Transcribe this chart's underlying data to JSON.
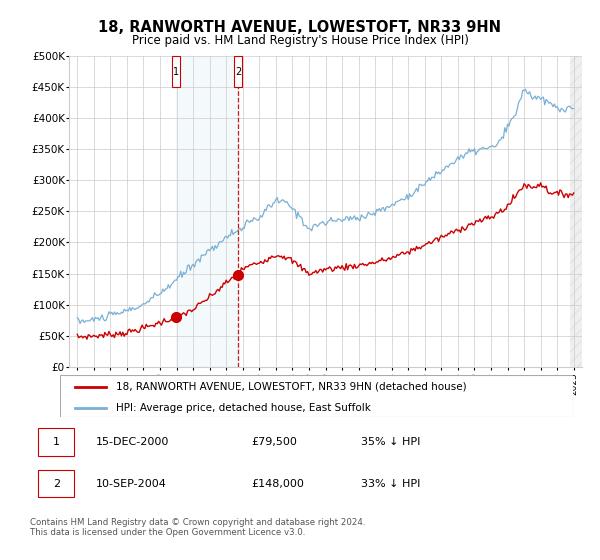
{
  "title": "18, RANWORTH AVENUE, LOWESTOFT, NR33 9HN",
  "subtitle": "Price paid vs. HM Land Registry's House Price Index (HPI)",
  "legend_line1": "18, RANWORTH AVENUE, LOWESTOFT, NR33 9HN (detached house)",
  "legend_line2": "HPI: Average price, detached house, East Suffolk",
  "footer": "Contains HM Land Registry data © Crown copyright and database right 2024.\nThis data is licensed under the Open Government Licence v3.0.",
  "table": [
    {
      "num": "1",
      "date": "15-DEC-2000",
      "price": "£79,500",
      "hpi": "35% ↓ HPI"
    },
    {
      "num": "2",
      "date": "10-SEP-2004",
      "price": "£148,000",
      "hpi": "33% ↓ HPI"
    }
  ],
  "xlim": [
    1994.5,
    2025.5
  ],
  "ylim": [
    0,
    500000
  ],
  "yticks": [
    0,
    50000,
    100000,
    150000,
    200000,
    250000,
    300000,
    350000,
    400000,
    450000,
    500000
  ],
  "ytick_labels": [
    "£0",
    "£50K",
    "£100K",
    "£150K",
    "£200K",
    "£250K",
    "£300K",
    "£350K",
    "£400K",
    "£450K",
    "£500K"
  ],
  "xticks": [
    1995,
    1996,
    1997,
    1998,
    1999,
    2000,
    2001,
    2002,
    2003,
    2004,
    2005,
    2006,
    2007,
    2008,
    2009,
    2010,
    2011,
    2012,
    2013,
    2014,
    2015,
    2016,
    2017,
    2018,
    2019,
    2020,
    2021,
    2022,
    2023,
    2024,
    2025
  ],
  "sale1_x": 2000.96,
  "sale1_y": 79500,
  "sale2_x": 2004.71,
  "sale2_y": 148000,
  "vline1_x": 2000.96,
  "vline2_x": 2004.71,
  "sale_color": "#cc0000",
  "hpi_color": "#7ab0d4",
  "vline_color": "#cc0000",
  "box_fill": "#d6e8f7",
  "background_color": "#ffffff",
  "hatch_color": "#cccccc"
}
